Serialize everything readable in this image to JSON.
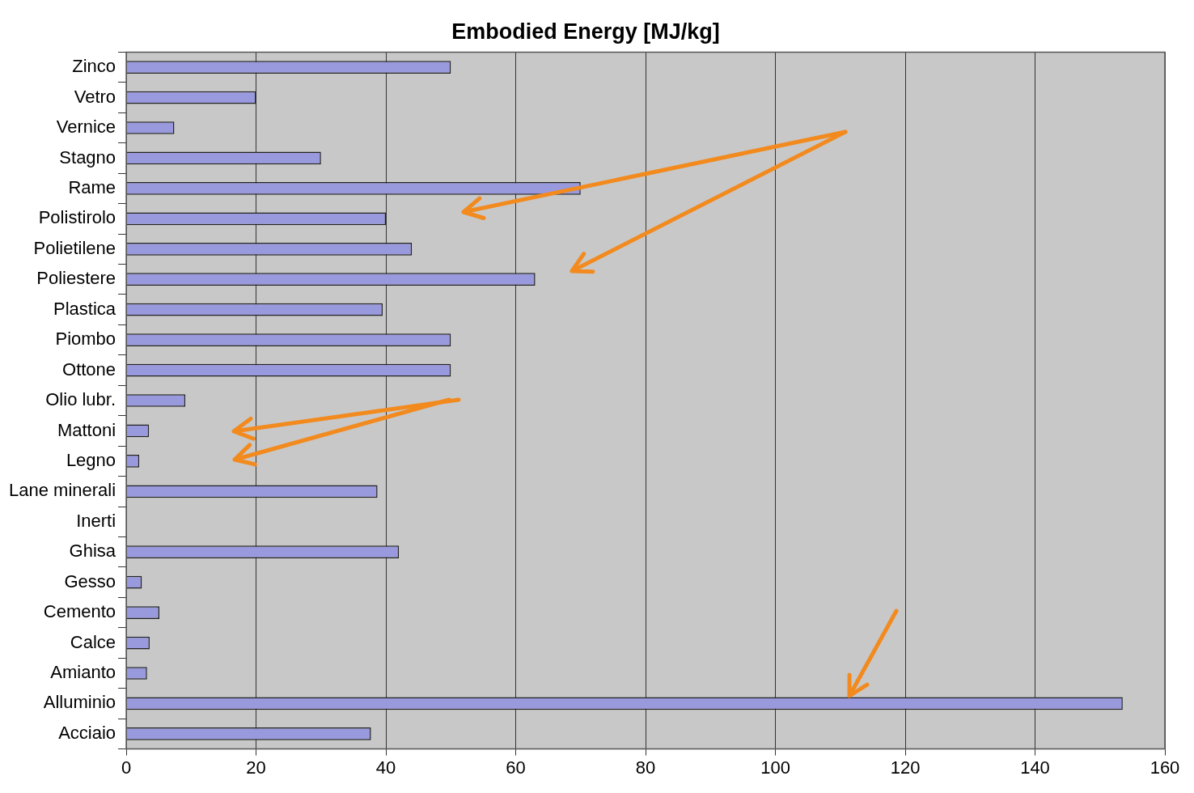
{
  "chart_data": {
    "type": "bar",
    "orientation": "horizontal",
    "title": "Embodied Energy [MJ/kg]",
    "categories": [
      "Zinco",
      "Vetro",
      "Vernice",
      "Stagno",
      "Rame",
      "Polistirolo",
      "Polietilene",
      "Poliestere",
      "Plastica",
      "Piombo",
      "Ottone",
      "Olio lubr.",
      "Mattoni",
      "Legno",
      "Lane minerali",
      "Inerti",
      "Ghisa",
      "Gesso",
      "Cemento",
      "Calce",
      "Amianto",
      "Alluminio",
      "Acciaio"
    ],
    "values": [
      50,
      20,
      7.4,
      30,
      70,
      40,
      44,
      63,
      39.5,
      50,
      50,
      9.1,
      3.5,
      2,
      38.7,
      null,
      42,
      2.4,
      5.1,
      3.6,
      3.2,
      153.5,
      37.7
    ],
    "color": "#9999dd",
    "xlim": [
      0,
      160
    ],
    "xticks": [
      0,
      20,
      40,
      60,
      80,
      100,
      120,
      140,
      160
    ],
    "grid": "x"
  }
}
